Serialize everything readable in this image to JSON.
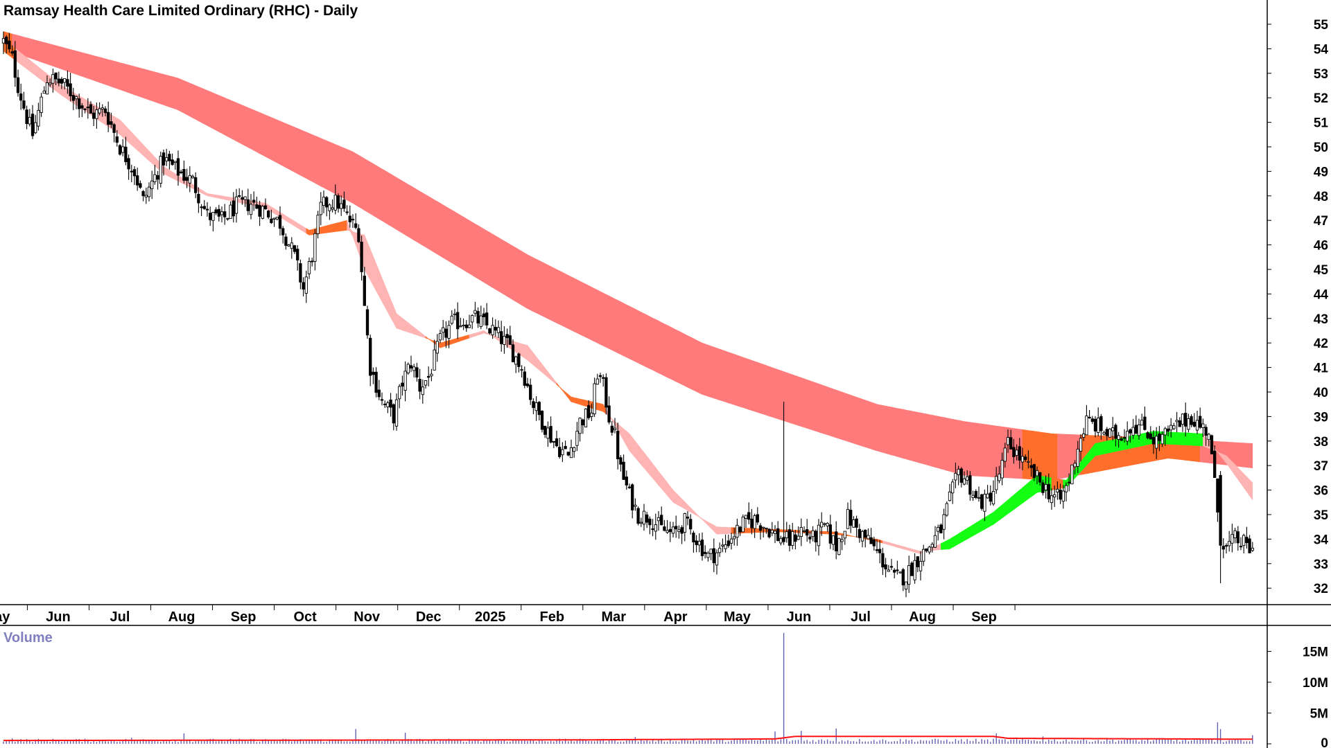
{
  "chart_data": [
    {
      "type": "candlestick",
      "title": "Ramsay Health Care Limited Ordinary (RHC) - Daily",
      "price_axis": {
        "ylim": [
          31.2,
          55.4
        ],
        "ticks": [
          32,
          33,
          34,
          35,
          36,
          37,
          38,
          39,
          40,
          41,
          42,
          43,
          44,
          45,
          46,
          47,
          48,
          49,
          50,
          51,
          52,
          53,
          54,
          55
        ],
        "tick_labels": [
          "32",
          "33",
          "34",
          "35",
          "36",
          "37",
          "38",
          "39",
          "40",
          "41",
          "42",
          "43",
          "44",
          "45",
          "46",
          "47",
          "48",
          "49",
          "50",
          "51",
          "52",
          "53",
          "54",
          "55"
        ]
      },
      "x_axis": {
        "month_labels": [
          "May",
          "Jun",
          "Jul",
          "Aug",
          "Sep",
          "Oct",
          "Nov",
          "Dec",
          "2025",
          "Feb",
          "Mar",
          "Apr",
          "May",
          "Jun",
          "Jul",
          "Aug",
          "Sep"
        ],
        "first_month_start_index": -13
      },
      "close_anchors": [
        [
          0,
          54.3
        ],
        [
          3,
          53.6
        ],
        [
          5,
          52.5
        ],
        [
          8,
          51.2
        ],
        [
          10,
          50.5
        ],
        [
          15,
          52.8
        ],
        [
          20,
          52.6
        ],
        [
          25,
          52.0
        ],
        [
          30,
          51.3
        ],
        [
          35,
          51.5
        ],
        [
          40,
          50.0
        ],
        [
          45,
          49.0
        ],
        [
          48,
          47.8
        ],
        [
          50,
          48.3
        ],
        [
          55,
          49.5
        ],
        [
          60,
          49.0
        ],
        [
          65,
          48.6
        ],
        [
          70,
          47.2
        ],
        [
          75,
          47.0
        ],
        [
          80,
          47.6
        ],
        [
          85,
          47.7
        ],
        [
          90,
          47.4
        ],
        [
          95,
          46.9
        ],
        [
          100,
          45.5
        ],
        [
          103,
          44.2
        ],
        [
          106,
          45.6
        ],
        [
          109,
          47.5
        ],
        [
          112,
          47.8
        ],
        [
          115,
          47.7
        ],
        [
          120,
          46.8
        ],
        [
          122,
          46.5
        ],
        [
          124,
          43.5
        ],
        [
          126,
          41.0
        ],
        [
          130,
          39.6
        ],
        [
          134,
          39.0
        ],
        [
          137,
          40.4
        ],
        [
          140,
          41.2
        ],
        [
          143,
          40.2
        ],
        [
          146,
          40.6
        ],
        [
          150,
          42.1
        ],
        [
          154,
          42.8
        ],
        [
          158,
          42.9
        ],
        [
          162,
          43.0
        ],
        [
          166,
          42.7
        ],
        [
          170,
          42.3
        ],
        [
          174,
          41.8
        ],
        [
          178,
          41.0
        ],
        [
          182,
          39.5
        ],
        [
          186,
          38.6
        ],
        [
          190,
          37.8
        ],
        [
          194,
          37.4
        ],
        [
          198,
          38.8
        ],
        [
          202,
          39.2
        ],
        [
          204,
          40.8
        ],
        [
          206,
          40.2
        ],
        [
          208,
          39.0
        ],
        [
          210,
          38.2
        ],
        [
          212,
          36.8
        ],
        [
          215,
          35.8
        ],
        [
          218,
          35.0
        ],
        [
          222,
          34.9
        ],
        [
          226,
          34.4
        ],
        [
          230,
          34.2
        ],
        [
          234,
          34.7
        ],
        [
          238,
          34.0
        ],
        [
          242,
          33.3
        ],
        [
          246,
          33.5
        ],
        [
          250,
          34.1
        ],
        [
          254,
          34.6
        ],
        [
          258,
          34.8
        ],
        [
          262,
          34.5
        ],
        [
          266,
          34.1
        ],
        [
          270,
          33.9
        ],
        [
          274,
          34.4
        ],
        [
          278,
          34.0
        ],
        [
          282,
          34.5
        ],
        [
          286,
          33.7
        ],
        [
          290,
          34.9
        ],
        [
          294,
          34.3
        ],
        [
          298,
          33.8
        ],
        [
          302,
          33.1
        ],
        [
          306,
          32.4
        ],
        [
          310,
          32.5
        ],
        [
          314,
          33.2
        ],
        [
          318,
          33.7
        ],
        [
          322,
          34.4
        ],
        [
          325,
          35.6
        ],
        [
          328,
          36.7
        ],
        [
          331,
          36.4
        ],
        [
          334,
          35.6
        ],
        [
          337,
          35.5
        ],
        [
          340,
          36.0
        ],
        [
          343,
          37.0
        ],
        [
          345,
          37.9
        ],
        [
          348,
          37.5
        ],
        [
          351,
          37.0
        ],
        [
          354,
          36.6
        ],
        [
          357,
          36.2
        ],
        [
          360,
          35.8
        ],
        [
          363,
          35.6
        ],
        [
          366,
          36.4
        ],
        [
          369,
          37.8
        ],
        [
          372,
          38.8
        ],
        [
          376,
          38.6
        ],
        [
          380,
          38.2
        ],
        [
          384,
          38.3
        ],
        [
          388,
          38.7
        ],
        [
          392,
          38.5
        ],
        [
          396,
          38.0
        ],
        [
          400,
          38.3
        ],
        [
          404,
          38.7
        ],
        [
          408,
          39.0
        ],
        [
          411,
          38.6
        ],
        [
          414,
          38.4
        ],
        [
          416,
          36.2
        ],
        [
          418,
          34.1
        ],
        [
          420,
          33.6
        ],
        [
          423,
          34.0
        ],
        [
          426,
          33.8
        ],
        [
          429,
          33.5
        ]
      ],
      "bar_count": 430,
      "bands": [
        {
          "name": "long-term MMA band",
          "fast": [
            [
              0,
              54.7
            ],
            [
              60,
              52.8
            ],
            [
              120,
              49.8
            ],
            [
              180,
              45.6
            ],
            [
              240,
              42.0
            ],
            [
              300,
              39.5
            ],
            [
              330,
              38.8
            ],
            [
              360,
              38.3
            ],
            [
              400,
              38.1
            ],
            [
              429,
              37.9
            ]
          ],
          "slow": [
            [
              0,
              54.0
            ],
            [
              60,
              51.5
            ],
            [
              120,
              47.7
            ],
            [
              180,
              43.4
            ],
            [
              240,
              39.9
            ],
            [
              300,
              37.6
            ],
            [
              330,
              36.6
            ],
            [
              360,
              36.4
            ],
            [
              400,
              37.3
            ],
            [
              429,
              36.9
            ]
          ],
          "state": [
            [
              0,
              "orange"
            ],
            [
              3,
              "red"
            ],
            [
              350,
              "orange"
            ],
            [
              362,
              "red"
            ],
            [
              370,
              "orange"
            ],
            [
              411,
              "red"
            ]
          ]
        },
        {
          "name": "short-term MMA band",
          "fast": [
            [
              0,
              54.4
            ],
            [
              20,
              52.5
            ],
            [
              40,
              51.1
            ],
            [
              55,
              49.2
            ],
            [
              70,
              48.1
            ],
            [
              90,
              47.7
            ],
            [
              105,
              46.6
            ],
            [
              118,
              47.0
            ],
            [
              124,
              45.0
            ],
            [
              135,
              42.6
            ],
            [
              150,
              42.0
            ],
            [
              165,
              42.5
            ],
            [
              180,
              41.3
            ],
            [
              195,
              39.8
            ],
            [
              206,
              39.5
            ],
            [
              215,
              37.6
            ],
            [
              230,
              35.5
            ],
            [
              245,
              34.5
            ],
            [
              265,
              34.4
            ],
            [
              285,
              34.3
            ],
            [
              300,
              33.9
            ],
            [
              315,
              33.4
            ],
            [
              325,
              34.0
            ],
            [
              340,
              35.1
            ],
            [
              355,
              36.6
            ],
            [
              365,
              36.4
            ],
            [
              375,
              37.9
            ],
            [
              395,
              38.4
            ],
            [
              412,
              38.3
            ],
            [
              420,
              37.1
            ],
            [
              429,
              35.6
            ]
          ],
          "slow": [
            [
              0,
              53.9
            ],
            [
              20,
              52.1
            ],
            [
              40,
              50.5
            ],
            [
              55,
              48.9
            ],
            [
              70,
              48.0
            ],
            [
              90,
              47.5
            ],
            [
              105,
              46.4
            ],
            [
              118,
              46.6
            ],
            [
              124,
              46.4
            ],
            [
              135,
              43.2
            ],
            [
              150,
              41.8
            ],
            [
              165,
              42.4
            ],
            [
              180,
              41.9
            ],
            [
              195,
              39.6
            ],
            [
              206,
              39.2
            ],
            [
              215,
              38.3
            ],
            [
              230,
              36.0
            ],
            [
              245,
              34.2
            ],
            [
              265,
              34.3
            ],
            [
              285,
              34.2
            ],
            [
              300,
              34.0
            ],
            [
              315,
              33.5
            ],
            [
              325,
              33.6
            ],
            [
              340,
              34.6
            ],
            [
              355,
              35.9
            ],
            [
              365,
              36.1
            ],
            [
              375,
              37.4
            ],
            [
              395,
              37.9
            ],
            [
              412,
              37.8
            ],
            [
              420,
              37.4
            ],
            [
              429,
              36.3
            ]
          ],
          "state": [
            [
              0,
              "orange"
            ],
            [
              4,
              "pink"
            ],
            [
              104,
              "orange"
            ],
            [
              118,
              "pink"
            ],
            [
              145,
              "orange"
            ],
            [
              160,
              "pink"
            ],
            [
              190,
              "orange"
            ],
            [
              207,
              "pink"
            ],
            [
              250,
              "orange"
            ],
            [
              302,
              "pink"
            ],
            [
              322,
              "green"
            ],
            [
              360,
              "orange"
            ],
            [
              364,
              "green"
            ],
            [
              412,
              "pink"
            ]
          ]
        }
      ]
    },
    {
      "type": "bar",
      "title": "Volume",
      "y_axis": {
        "ylim": [
          0,
          18.5
        ],
        "ticks": [
          0,
          5,
          10,
          15
        ],
        "tick_labels": [
          "0",
          "5M",
          "10M",
          "15M"
        ]
      },
      "base_volume_millions": 0.6,
      "spikes": [
        [
          3,
          0.9
        ],
        [
          44,
          1.0
        ],
        [
          62,
          1.7
        ],
        [
          121,
          2.4
        ],
        [
          138,
          1.8
        ],
        [
          217,
          1.1
        ],
        [
          265,
          2.0
        ],
        [
          268,
          18.0
        ],
        [
          274,
          2.1
        ],
        [
          286,
          2.5
        ],
        [
          341,
          1.7
        ],
        [
          357,
          1.2
        ],
        [
          417,
          3.5
        ],
        [
          418,
          2.4
        ],
        [
          429,
          1.4
        ]
      ],
      "moving_average": [
        [
          0,
          0.55
        ],
        [
          100,
          0.6
        ],
        [
          200,
          0.65
        ],
        [
          265,
          0.8
        ],
        [
          272,
          1.2
        ],
        [
          340,
          1.2
        ],
        [
          345,
          0.9
        ],
        [
          400,
          0.8
        ],
        [
          429,
          0.75
        ]
      ]
    }
  ],
  "colors": {
    "up_candle": "#ffffff",
    "down_candle": "#000000",
    "long_band_red": "#ff7a7a",
    "band_orange": "#ff6e2a",
    "short_band_pink": "#ffb4b4",
    "short_band_green": "#14ff14",
    "volume_bar": "#6060b0",
    "volume_ma": "#ff1010",
    "volume_title": "#8080c0"
  }
}
